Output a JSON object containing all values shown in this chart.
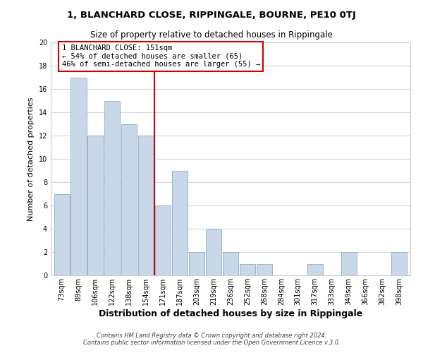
{
  "title": "1, BLANCHARD CLOSE, RIPPINGALE, BOURNE, PE10 0TJ",
  "subtitle": "Size of property relative to detached houses in Rippingale",
  "xlabel": "Distribution of detached houses by size in Rippingale",
  "ylabel": "Number of detached properties",
  "footer_line1": "Contains HM Land Registry data © Crown copyright and database right 2024.",
  "footer_line2": "Contains public sector information licensed under the Open Government Licence v.3.0.",
  "bin_labels": [
    "73sqm",
    "89sqm",
    "106sqm",
    "122sqm",
    "138sqm",
    "154sqm",
    "171sqm",
    "187sqm",
    "203sqm",
    "219sqm",
    "236sqm",
    "252sqm",
    "268sqm",
    "284sqm",
    "301sqm",
    "317sqm",
    "333sqm",
    "349sqm",
    "366sqm",
    "382sqm",
    "398sqm"
  ],
  "bar_heights": [
    7,
    17,
    12,
    15,
    13,
    12,
    6,
    9,
    2,
    4,
    2,
    1,
    1,
    0,
    0,
    1,
    0,
    2,
    0,
    0,
    2
  ],
  "bar_color": "#c8d8e8",
  "bar_edge_color": "#9ab4cb",
  "highlight_line_color": "#cc0000",
  "annotation_title": "1 BLANCHARD CLOSE: 151sqm",
  "annotation_line1": "← 54% of detached houses are smaller (65)",
  "annotation_line2": "46% of semi-detached houses are larger (55) →",
  "annotation_box_color": "#ffffff",
  "annotation_box_edge": "#cc0000",
  "ylim": [
    0,
    20
  ],
  "yticks": [
    0,
    2,
    4,
    6,
    8,
    10,
    12,
    14,
    16,
    18,
    20
  ],
  "background_color": "#ffffff",
  "grid_color": "#d0d8e0",
  "title_fontsize": 9.5,
  "subtitle_fontsize": 8.5,
  "xlabel_fontsize": 9,
  "ylabel_fontsize": 8,
  "tick_fontsize": 7,
  "footer_fontsize": 6,
  "annotation_fontsize": 7.5
}
